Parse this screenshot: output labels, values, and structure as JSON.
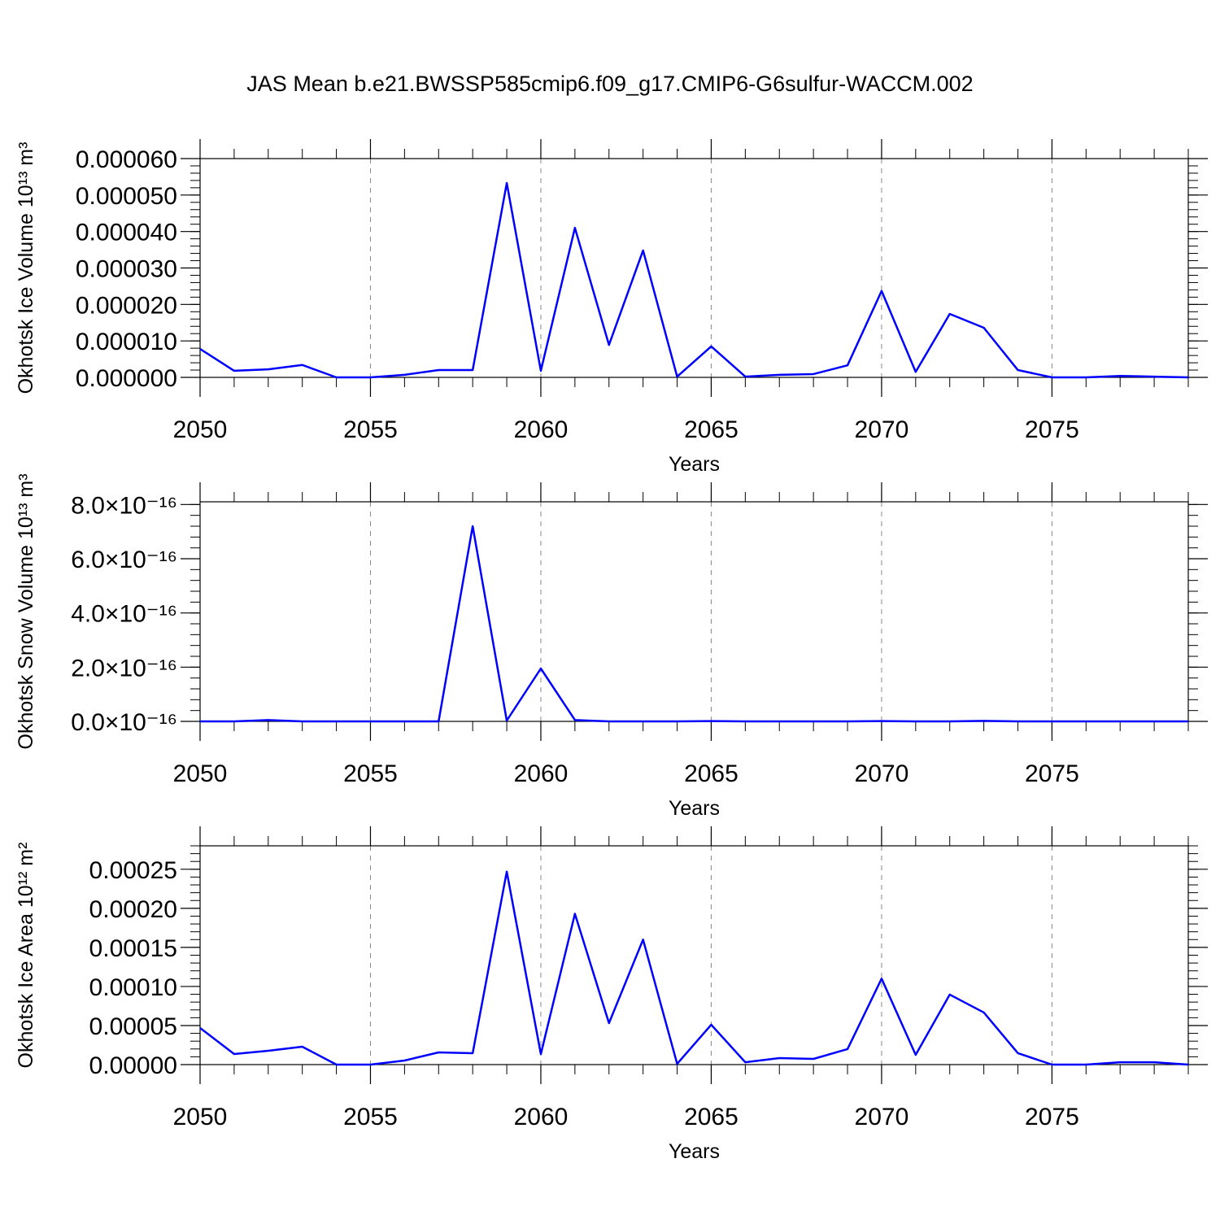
{
  "chart_data": [
    {
      "type": "line",
      "title": "JAS Mean b.e21.BWSSP585cmip6.f09_g17.CMIP6-G6sulfur-WACCM.002",
      "xlabel": "Years",
      "ylabel": "Okhotsk Ice Volume 10¹³ m³",
      "x": [
        2050,
        2051,
        2052,
        2053,
        2054,
        2055,
        2056,
        2057,
        2058,
        2059,
        2060,
        2061,
        2062,
        2063,
        2064,
        2065,
        2066,
        2067,
        2068,
        2069,
        2070,
        2071,
        2072,
        2073,
        2074,
        2075,
        2076,
        2077,
        2078,
        2079
      ],
      "series": [
        {
          "color": "#0000ff",
          "values": [
            7.8e-06,
            1.8e-06,
            2.2e-06,
            3.4e-06,
            0,
            0,
            7e-07,
            2e-06,
            2e-06,
            5.33e-05,
            1.8e-06,
            4.1e-05,
            8.9e-06,
            3.48e-05,
            2e-07,
            8.5e-06,
            2e-07,
            7e-07,
            9e-07,
            3.3e-06,
            2.37e-05,
            1.5e-06,
            1.74e-05,
            1.36e-05,
            2e-06,
            0,
            0,
            4e-07,
            2e-07,
            0
          ]
        }
      ],
      "xlim": [
        2050,
        2079
      ],
      "xticks": [
        2050,
        2055,
        2060,
        2065,
        2070,
        2075
      ],
      "ylim": [
        0,
        6e-05
      ],
      "yticks": [
        {
          "value": 0,
          "label": "0.000000"
        },
        {
          "value": 1e-05,
          "label": "0.000010"
        },
        {
          "value": 2e-05,
          "label": "0.000020"
        },
        {
          "value": 3e-05,
          "label": "0.000030"
        },
        {
          "value": 4e-05,
          "label": "0.000040"
        },
        {
          "value": 5e-05,
          "label": "0.000050"
        },
        {
          "value": 6e-05,
          "label": "0.000060"
        }
      ],
      "grid": true
    },
    {
      "type": "line",
      "xlabel": "Years",
      "ylabel": "Okhotsk Snow Volume 10¹³ m³",
      "x": [
        2050,
        2051,
        2052,
        2053,
        2054,
        2055,
        2056,
        2057,
        2058,
        2059,
        2060,
        2061,
        2062,
        2063,
        2064,
        2065,
        2066,
        2067,
        2068,
        2069,
        2070,
        2071,
        2072,
        2073,
        2074,
        2075,
        2076,
        2077,
        2078,
        2079
      ],
      "series": [
        {
          "color": "#0000ff",
          "values": [
            0,
            0,
            5e-18,
            0,
            0,
            0,
            0,
            0,
            7.2e-16,
            3e-18,
            1.95e-16,
            5e-18,
            0,
            0,
            0,
            1e-18,
            0,
            0,
            0,
            0,
            1e-18,
            0,
            0,
            2e-18,
            0,
            0,
            0,
            0,
            0,
            0
          ]
        }
      ],
      "xlim": [
        2050,
        2079
      ],
      "xticks": [
        2050,
        2055,
        2060,
        2065,
        2070,
        2075
      ],
      "ylim": [
        0,
        8.1e-16
      ],
      "yticks": [
        {
          "value": 0,
          "label": "0.0×10⁻¹⁶"
        },
        {
          "value": 2e-16,
          "label": "2.0×10⁻¹⁶"
        },
        {
          "value": 4e-16,
          "label": "4.0×10⁻¹⁶"
        },
        {
          "value": 6e-16,
          "label": "6.0×10⁻¹⁶"
        },
        {
          "value": 8e-16,
          "label": "8.0×10⁻¹⁶"
        }
      ],
      "grid": true
    },
    {
      "type": "line",
      "xlabel": "Years",
      "ylabel": "Okhotsk Ice Area 10¹² m²",
      "x": [
        2050,
        2051,
        2052,
        2053,
        2054,
        2055,
        2056,
        2057,
        2058,
        2059,
        2060,
        2061,
        2062,
        2063,
        2064,
        2065,
        2066,
        2067,
        2068,
        2069,
        2070,
        2071,
        2072,
        2073,
        2074,
        2075,
        2076,
        2077,
        2078,
        2079
      ],
      "series": [
        {
          "color": "#0000ff",
          "values": [
            4.69e-05,
            1.35e-05,
            1.77e-05,
            2.29e-05,
            0,
            0,
            5.2e-06,
            1.56e-05,
            1.46e-05,
            0.000247,
            1.35e-05,
            0.000193,
            5.31e-05,
            0.00016,
            1e-06,
            5.1e-05,
            3e-06,
            8.3e-06,
            7.3e-06,
            1.98e-05,
            0.00011,
            1.25e-05,
            8.96e-05,
            6.67e-05,
            1.46e-05,
            0,
            0,
            3e-06,
            3e-06,
            0
          ]
        }
      ],
      "xlim": [
        2050,
        2079
      ],
      "xticks": [
        2050,
        2055,
        2060,
        2065,
        2070,
        2075
      ],
      "ylim": [
        0,
        0.00028
      ],
      "yticks": [
        {
          "value": 0,
          "label": "0.00000"
        },
        5e-05,
        {
          "value": 0.0001,
          "label": "0.00010"
        },
        0.00015,
        {
          "value": 0.0002,
          "label": "0.00020"
        },
        0.00025
      ],
      "grid": true
    }
  ]
}
